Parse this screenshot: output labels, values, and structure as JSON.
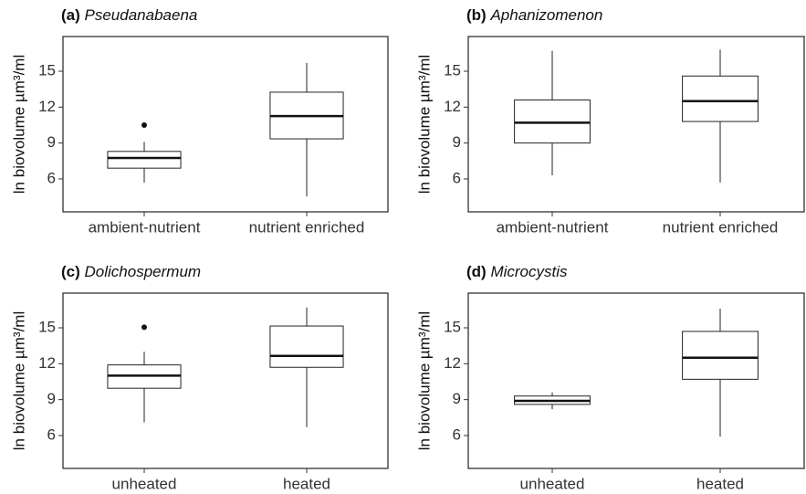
{
  "chart_data": [
    {
      "type": "box",
      "panel": "(a)",
      "title": "Pseudanabaena",
      "ylabel": "ln biovolume µm³/ml",
      "categories": [
        "ambient-nutrient",
        "nutrient enriched"
      ],
      "boxes": [
        {
          "whislo": 5.7,
          "q1": 6.9,
          "med": 7.75,
          "q3": 8.3,
          "whishi": 9.1,
          "fliers": [
            10.5
          ]
        },
        {
          "whislo": 4.55,
          "q1": 9.35,
          "med": 11.25,
          "q3": 13.25,
          "whishi": 15.7,
          "fliers": []
        }
      ],
      "ylim": [
        3.25,
        17.9
      ],
      "yticks": [
        6,
        9,
        12,
        15
      ]
    },
    {
      "type": "box",
      "panel": "(b)",
      "title": "Aphanizomenon",
      "ylabel": "ln biovolume µm³/ml",
      "categories": [
        "ambient-nutrient",
        "nutrient enriched"
      ],
      "boxes": [
        {
          "whislo": 6.3,
          "q1": 9.0,
          "med": 10.7,
          "q3": 12.6,
          "whishi": 16.7,
          "fliers": []
        },
        {
          "whislo": 5.7,
          "q1": 10.8,
          "med": 12.5,
          "q3": 14.6,
          "whishi": 16.8,
          "fliers": []
        }
      ],
      "ylim": [
        3.25,
        17.9
      ],
      "yticks": [
        6,
        9,
        12,
        15
      ]
    },
    {
      "type": "box",
      "panel": "(c)",
      "title": "Dolichospermum",
      "ylabel": "ln biovolume µm³/ml",
      "categories": [
        "unheated",
        "heated"
      ],
      "boxes": [
        {
          "whislo": 7.1,
          "q1": 9.95,
          "med": 11.0,
          "q3": 11.9,
          "whishi": 13.0,
          "fliers": [
            15.05
          ]
        },
        {
          "whislo": 6.7,
          "q1": 11.7,
          "med": 12.65,
          "q3": 15.15,
          "whishi": 16.7,
          "fliers": []
        }
      ],
      "ylim": [
        3.25,
        17.9
      ],
      "yticks": [
        6,
        9,
        12,
        15
      ]
    },
    {
      "type": "box",
      "panel": "(d)",
      "title": "Microcystis",
      "ylabel": "ln biovolume µm³/ml",
      "categories": [
        "unheated",
        "heated"
      ],
      "boxes": [
        {
          "whislo": 8.2,
          "q1": 8.6,
          "med": 8.9,
          "q3": 9.3,
          "whishi": 9.6,
          "fliers": []
        },
        {
          "whislo": 5.9,
          "q1": 10.7,
          "med": 12.5,
          "q3": 14.7,
          "whishi": 16.6,
          "fliers": []
        }
      ],
      "ylim": [
        3.25,
        17.9
      ],
      "yticks": [
        6,
        9,
        12,
        15
      ]
    }
  ]
}
